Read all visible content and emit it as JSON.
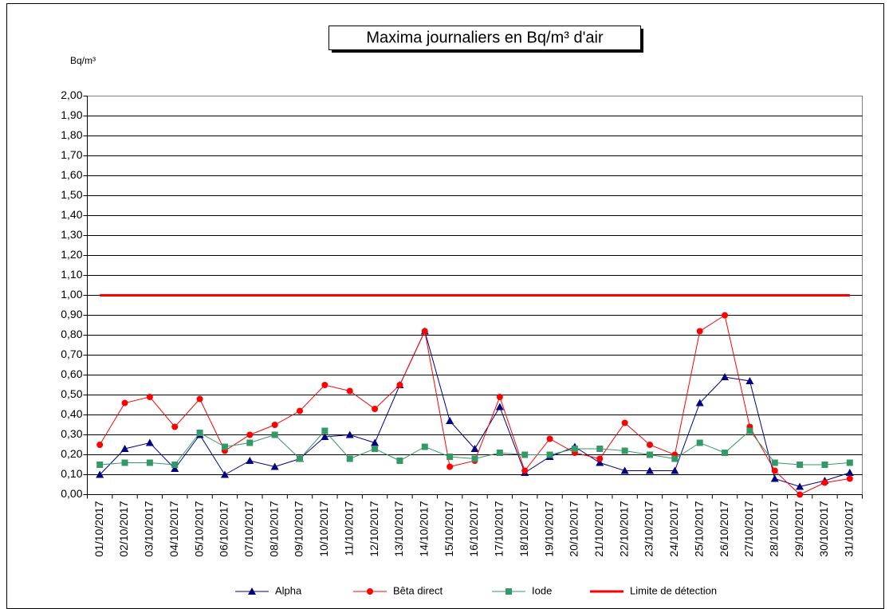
{
  "chart_data": {
    "type": "line",
    "title": "Maxima journaliers en Bq/m³ d'air",
    "y_axis_label": "Bq/m³",
    "categories": [
      "01/10/2017",
      "02/10/2017",
      "03/10/2017",
      "04/10/2017",
      "05/10/2017",
      "06/10/2017",
      "07/10/2017",
      "08/10/2017",
      "09/10/2017",
      "10/10/2017",
      "11/10/2017",
      "12/10/2017",
      "13/10/2017",
      "14/10/2017",
      "15/10/2017",
      "16/10/2017",
      "17/10/2017",
      "18/10/2017",
      "19/10/2017",
      "20/10/2017",
      "21/10/2017",
      "22/10/2017",
      "23/10/2017",
      "24/10/2017",
      "25/10/2017",
      "26/10/2017",
      "27/10/2017",
      "28/10/2017",
      "29/10/2017",
      "30/10/2017",
      "31/10/2017"
    ],
    "series": [
      {
        "name": "Alpha",
        "color": "#000080",
        "marker": "triangle",
        "values": [
          0.1,
          0.23,
          0.26,
          0.13,
          0.3,
          0.1,
          0.17,
          0.14,
          0.18,
          0.29,
          0.3,
          0.26,
          0.55,
          0.82,
          0.37,
          0.23,
          0.44,
          0.11,
          0.19,
          0.24,
          0.16,
          0.12,
          0.12,
          0.12,
          0.46,
          0.59,
          0.57,
          0.08,
          0.04,
          0.07,
          0.11
        ]
      },
      {
        "name": "Bêta direct",
        "color": "#ff0000",
        "marker": "circle",
        "values": [
          0.25,
          0.46,
          0.49,
          0.34,
          0.48,
          0.22,
          0.3,
          0.35,
          0.42,
          0.55,
          0.52,
          0.43,
          0.55,
          0.82,
          0.14,
          0.17,
          0.49,
          0.12,
          0.28,
          0.21,
          0.18,
          0.36,
          0.25,
          0.2,
          0.82,
          0.9,
          0.34,
          0.12,
          0.0,
          0.06,
          0.08
        ]
      },
      {
        "name": "Iode",
        "color": "#339966",
        "marker": "square",
        "values": [
          0.15,
          0.16,
          0.16,
          0.15,
          0.31,
          0.24,
          0.26,
          0.3,
          0.18,
          0.32,
          0.18,
          0.23,
          0.17,
          0.24,
          0.19,
          0.18,
          0.21,
          0.2,
          0.2,
          0.23,
          0.23,
          0.22,
          0.2,
          0.18,
          0.26,
          0.21,
          0.32,
          0.16,
          0.15,
          0.15,
          0.16
        ]
      },
      {
        "name": "Limite de détection",
        "color": "#ff0000",
        "marker": "none",
        "values": [
          1,
          1,
          1,
          1,
          1,
          1,
          1,
          1,
          1,
          1,
          1,
          1,
          1,
          1,
          1,
          1,
          1,
          1,
          1,
          1,
          1,
          1,
          1,
          1,
          1,
          1,
          1,
          1,
          1,
          1,
          1
        ]
      }
    ],
    "ylim": [
      0,
      2
    ],
    "yticks": [
      {
        "value": 0,
        "label": "0,00"
      },
      {
        "value": 0.1,
        "label": "0,10"
      },
      {
        "value": 0.2,
        "label": "0,20"
      },
      {
        "value": 0.3,
        "label": "0,30"
      },
      {
        "value": 0.4,
        "label": "0,40"
      },
      {
        "value": 0.5,
        "label": "0,50"
      },
      {
        "value": 0.6,
        "label": "0,60"
      },
      {
        "value": 0.7,
        "label": "0,70"
      },
      {
        "value": 0.8,
        "label": "0,80"
      },
      {
        "value": 0.9,
        "label": "0,90"
      },
      {
        "value": 1,
        "label": "1,00"
      },
      {
        "value": 1.1,
        "label": "1,10"
      },
      {
        "value": 1.2,
        "label": "1,20"
      },
      {
        "value": 1.3,
        "label": "1,30"
      },
      {
        "value": 1.4,
        "label": "1,40"
      },
      {
        "value": 1.5,
        "label": "1,50"
      },
      {
        "value": 1.6,
        "label": "1,60"
      },
      {
        "value": 1.7,
        "label": "1,70"
      },
      {
        "value": 1.8,
        "label": "1,80"
      },
      {
        "value": 1.9,
        "label": "1,90"
      },
      {
        "value": 2,
        "label": "2,00"
      }
    ],
    "grid": true,
    "legend": "bottom"
  }
}
